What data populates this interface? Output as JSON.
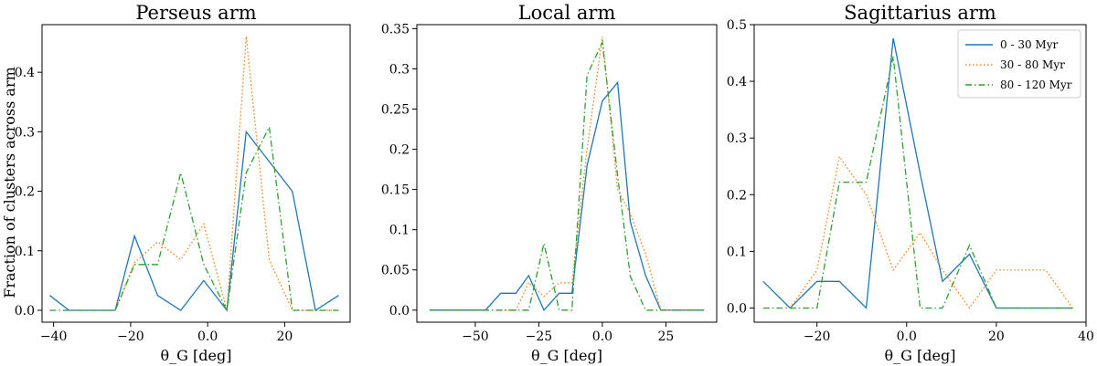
{
  "ylabel": "Fraction of clusters across arm",
  "legend": [
    {
      "label": "0 - 30 Myr",
      "color": "#1f77b4",
      "style": "solid"
    },
    {
      "label": "30 - 80 Myr",
      "color": "#ff7f0e",
      "style": "dotted"
    },
    {
      "label": "80 - 120 Myr",
      "color": "#2ca02c",
      "style": "dashdot"
    }
  ],
  "chart_data": [
    {
      "type": "line",
      "title": "Perseus arm",
      "xlabel": "θ_G [deg]",
      "xlim": [
        -43,
        37
      ],
      "ylim": [
        -0.02,
        0.48
      ],
      "xticks": [
        -40,
        -20,
        0,
        20
      ],
      "yticks": [
        0.0,
        0.1,
        0.2,
        0.3,
        0.4
      ],
      "series": [
        {
          "name": "0 - 30 Myr",
          "x": [
            -41,
            -36,
            -30,
            -24,
            -19,
            -13,
            -7,
            -1,
            5,
            10,
            16,
            22,
            28,
            34
          ],
          "y": [
            0.025,
            0.0,
            0.0,
            0.0,
            0.125,
            0.025,
            0.0,
            0.05,
            0.0,
            0.3,
            0.25,
            0.2,
            0.0,
            0.025
          ]
        },
        {
          "name": "30 - 80 Myr",
          "x": [
            -24,
            -19,
            -13,
            -7,
            -1,
            5,
            10,
            16,
            22,
            28,
            34
          ],
          "y": [
            0.0,
            0.08,
            0.115,
            0.085,
            0.145,
            0.0,
            0.46,
            0.085,
            0.0,
            0.0,
            0.0
          ]
        },
        {
          "name": "80 - 120 Myr",
          "x": [
            -41,
            -36,
            -30,
            -24,
            -19,
            -13,
            -7,
            -1,
            5,
            10,
            16,
            22,
            28,
            34
          ],
          "y": [
            0.0,
            0.0,
            0.0,
            0.0,
            0.077,
            0.077,
            0.231,
            0.077,
            0.0,
            0.231,
            0.308,
            0.0,
            0.0,
            0.0
          ]
        }
      ]
    },
    {
      "type": "line",
      "title": "Local arm",
      "xlabel": "θ_G [deg]",
      "xlim": [
        -73,
        45
      ],
      "ylim": [
        -0.015,
        0.355
      ],
      "xticks": [
        -50,
        -25,
        0,
        25
      ],
      "yticks": [
        0.0,
        0.05,
        0.1,
        0.15,
        0.2,
        0.25,
        0.3,
        0.35
      ],
      "series": [
        {
          "name": "0 - 30 Myr",
          "x": [
            -68,
            -63,
            -57,
            -51,
            -46,
            -40,
            -34,
            -29,
            -23,
            -17,
            -12,
            -6,
            0,
            6,
            11,
            17,
            23,
            28,
            34,
            40
          ],
          "y": [
            0.0,
            0.0,
            0.0,
            0.0,
            0.0,
            0.021,
            0.021,
            0.043,
            0.0,
            0.021,
            0.021,
            0.18,
            0.26,
            0.283,
            0.11,
            0.043,
            0.0,
            0.0,
            0.0,
            0.0
          ]
        },
        {
          "name": "30 - 80 Myr",
          "x": [
            -40,
            -34,
            -29,
            -23,
            -17,
            -12,
            -6,
            0,
            6,
            11,
            17,
            23,
            28,
            34,
            40
          ],
          "y": [
            0.0,
            0.0,
            0.034,
            0.017,
            0.034,
            0.034,
            0.2,
            0.34,
            0.15,
            0.12,
            0.07,
            0.0,
            0.0,
            0.0,
            0.0
          ]
        },
        {
          "name": "80 - 120 Myr",
          "x": [
            -68,
            -63,
            -57,
            -51,
            -46,
            -40,
            -34,
            -29,
            -23,
            -17,
            -12,
            -6,
            0,
            6,
            11,
            17,
            23,
            28,
            34,
            40
          ],
          "y": [
            0.0,
            0.0,
            0.0,
            0.0,
            0.0,
            0.0,
            0.0,
            0.0,
            0.083,
            0.0,
            0.0,
            0.292,
            0.333,
            0.167,
            0.042,
            0.0,
            0.0,
            0.0,
            0.0,
            0.0
          ]
        }
      ]
    },
    {
      "type": "line",
      "title": "Sagittarius arm",
      "xlabel": "θ_G [deg]",
      "xlim": [
        -34,
        40
      ],
      "ylim": [
        -0.025,
        0.5
      ],
      "xticks": [
        -20,
        0,
        20,
        40
      ],
      "yticks": [
        0.0,
        0.1,
        0.2,
        0.3,
        0.4,
        0.5
      ],
      "legend_position": "upper right",
      "series": [
        {
          "name": "0 - 30 Myr",
          "x": [
            -32,
            -26,
            -20,
            -15,
            -9,
            -3,
            3,
            8,
            14,
            20,
            25,
            31,
            37
          ],
          "y": [
            0.047,
            0.0,
            0.047,
            0.047,
            0.0,
            0.476,
            0.238,
            0.047,
            0.095,
            0.0,
            0.0,
            0.0,
            0.0
          ]
        },
        {
          "name": "30 - 80 Myr",
          "x": [
            -26,
            -20,
            -15,
            -9,
            -3,
            3,
            8,
            14,
            20,
            25,
            31,
            37
          ],
          "y": [
            0.0,
            0.067,
            0.267,
            0.2,
            0.067,
            0.133,
            0.067,
            0.0,
            0.067,
            0.067,
            0.067,
            0.0
          ]
        },
        {
          "name": "80 - 120 Myr",
          "x": [
            -32,
            -26,
            -20,
            -15,
            -9,
            -3,
            3,
            8,
            14,
            20,
            25,
            31,
            37
          ],
          "y": [
            0.0,
            0.0,
            0.0,
            0.222,
            0.222,
            0.444,
            0.0,
            0.0,
            0.111,
            0.0,
            0.0,
            0.0,
            0.0
          ]
        }
      ]
    }
  ]
}
